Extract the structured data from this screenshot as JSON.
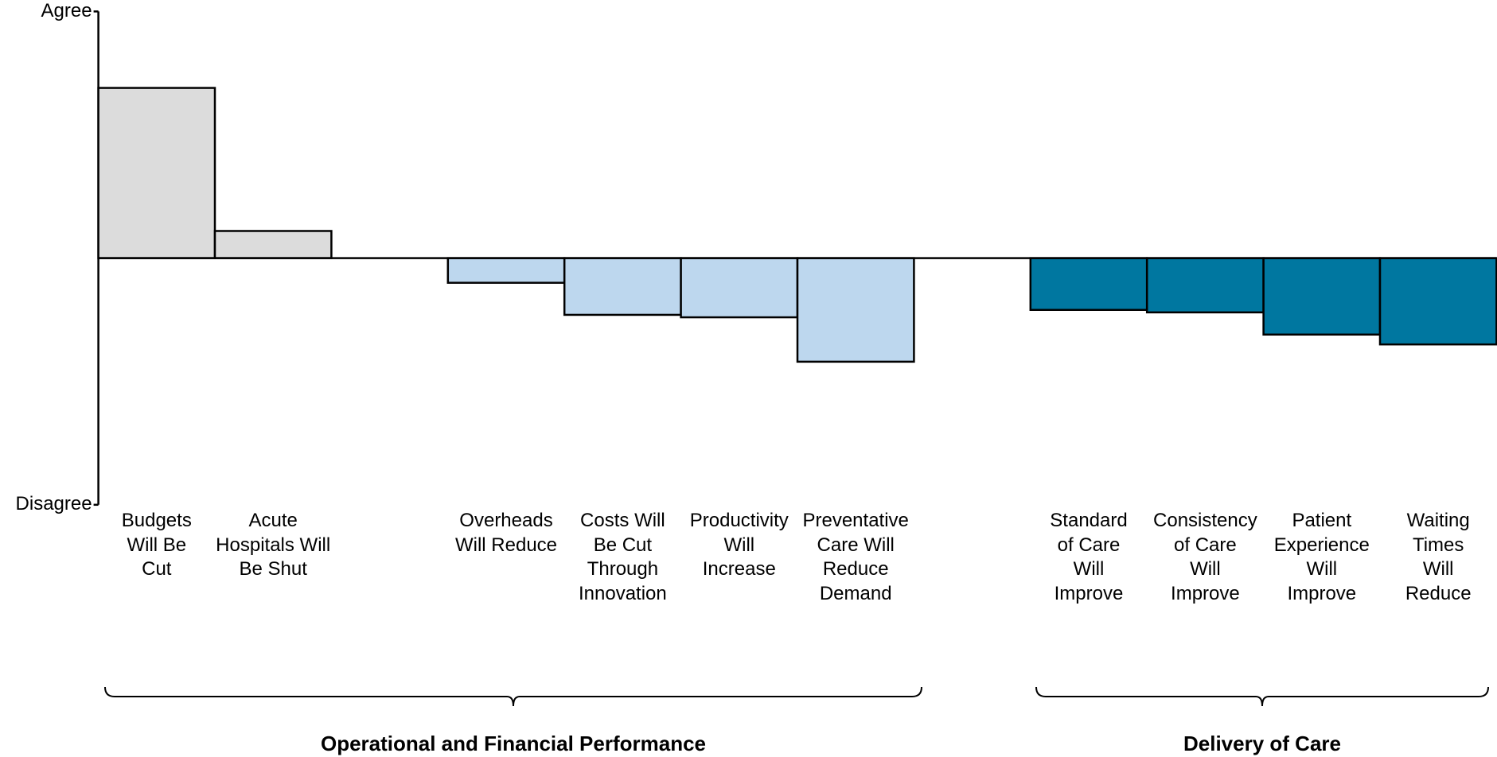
{
  "chart_data": {
    "type": "bar",
    "categories": [
      "Budgets\nWill Be\nCut",
      "Acute\nHospitals Will\nBe Shut",
      null,
      "Overheads\nWill Reduce",
      "Costs Will\nBe Cut\nThrough\nInnovation",
      "Productivity\nWill\nIncrease",
      "Preventative\nCare Will\nReduce\nDemand",
      null,
      "Standard\nof Care\nWill\nImprove",
      "Consistency\nof Care\nWill\nImprove",
      "Patient\nExperience\nWill\nImprove",
      "Waiting\nTimes\nWill\nReduce"
    ],
    "values": [
      0.69,
      0.11,
      null,
      -0.1,
      -0.23,
      -0.24,
      -0.42,
      null,
      -0.21,
      -0.22,
      -0.31,
      -0.35
    ],
    "colors": [
      "#dcdcdc",
      "#dcdcdc",
      null,
      "#bdd7ee",
      "#bdd7ee",
      "#bdd7ee",
      "#bdd7ee",
      null,
      "#0077a0",
      "#0077a0",
      "#0077a0",
      "#0077a0"
    ],
    "ylim": [
      -1,
      1
    ],
    "yticks": [
      {
        "value": 1,
        "label": "Agree"
      },
      {
        "value": -1,
        "label": "Disagree"
      }
    ],
    "groups": [
      "Operational and Financial Performance",
      "Delivery of Care"
    ]
  }
}
